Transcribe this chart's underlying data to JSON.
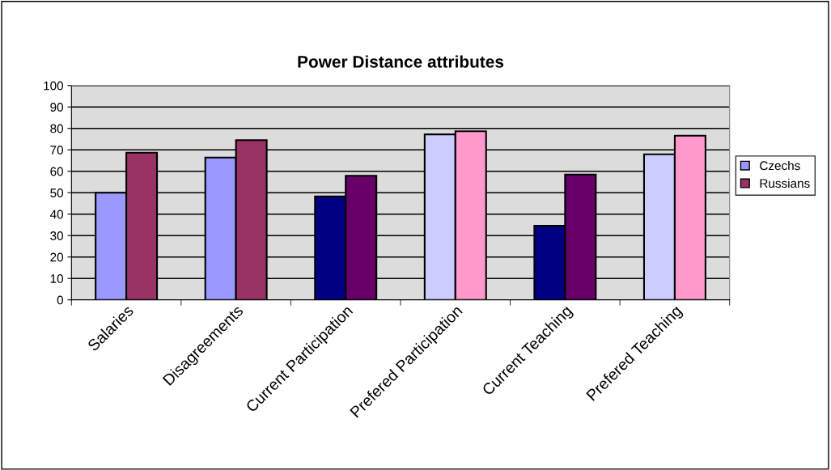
{
  "chart_data": {
    "type": "bar",
    "title": "Power Distance attributes",
    "categories": [
      "Salaries",
      "Disagreements",
      "Current Participation",
      "Prefered Participation",
      "Current Teaching",
      "Prefered Teaching"
    ],
    "series": [
      {
        "name": "Czechs",
        "color": "#9999ff",
        "colors": [
          "#9999ff",
          "#9999ff",
          "#000080",
          "#ccccff",
          "#000080",
          "#ccccff"
        ],
        "values": [
          50,
          66.4,
          48.3,
          77.2,
          34.6,
          67.9
        ]
      },
      {
        "name": "Russians",
        "color": "#993366",
        "colors": [
          "#993366",
          "#993366",
          "#660066",
          "#ff99cc",
          "#660066",
          "#ff99cc"
        ],
        "values": [
          68.7,
          74.5,
          57.9,
          78.7,
          58.5,
          76.6
        ]
      }
    ],
    "ylim": [
      0,
      100
    ],
    "yticks": [
      0,
      10,
      20,
      30,
      40,
      50,
      60,
      70,
      80,
      90,
      100
    ],
    "grid": "y",
    "legend": "right"
  }
}
